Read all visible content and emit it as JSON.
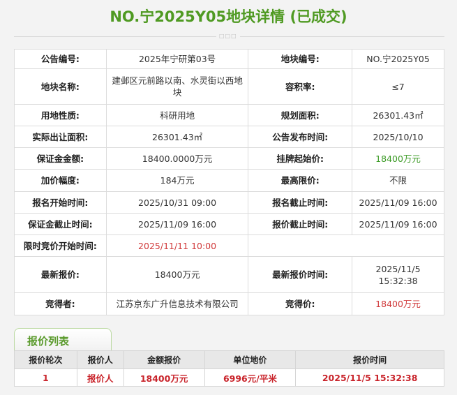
{
  "title": "NO.宁2025Y05地块详情 (已成交)",
  "divider_glyph": "□□□",
  "info": {
    "rows": [
      [
        "公告编号:",
        "2025年宁研第03号",
        "地块编号:",
        "NO.宁2025Y05"
      ],
      [
        "地块名称:",
        "建邺区元前路以南、水灵街以西地块",
        "容积率:",
        "≤7"
      ],
      [
        "用地性质:",
        "科研用地",
        "规划面积:",
        "26301.43㎡"
      ],
      [
        "实际出让面积:",
        "26301.43㎡",
        "公告发布时间:",
        "2025/10/10"
      ],
      [
        "保证金金额:",
        "18400.0000万元",
        "挂牌起始价:",
        "18400万元"
      ],
      [
        "加价幅度:",
        "184万元",
        "最高限价:",
        "不限"
      ],
      [
        "报名开始时间:",
        "2025/10/31 09:00",
        "报名截止时间:",
        "2025/11/09 16:00"
      ],
      [
        "保证金截止时间:",
        "2025/11/09 16:00",
        "报价截止时间:",
        "2025/11/09 16:00"
      ],
      [
        "限时竞价开始时间:",
        "2025/11/11 10:00"
      ],
      [
        "最新报价:",
        "18400万元",
        "最新报价时间:",
        "2025/11/5 15:32:38"
      ],
      [
        "竞得者:",
        "江苏京东广升信息技术有限公司",
        "竞得价:",
        "18400万元"
      ]
    ]
  },
  "bid_list": {
    "tab_label": "报价列表",
    "headers": [
      "报价轮次",
      "报价人",
      "金额报价",
      "单位地价",
      "报价时间"
    ],
    "rows": [
      [
        "1",
        "报价人",
        "18400万元",
        "6996元/平米",
        "2025/11/5 15:32:38"
      ]
    ]
  },
  "colors": {
    "title_green": "#4f9a22",
    "highlight_red": "#d0393a",
    "start_price_green": "#3b9a25"
  }
}
